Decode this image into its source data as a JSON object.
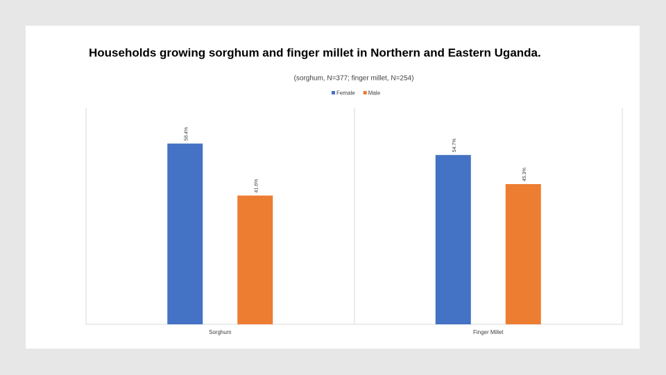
{
  "chart_data": {
    "type": "bar",
    "title": "Households growing sorghum and finger millet in Northern and Eastern Uganda.",
    "subtitle": "(sorghum, N=377; finger millet, N=254)",
    "categories": [
      "Sorghum",
      "Finger Millet"
    ],
    "series": [
      {
        "name": "Female",
        "color": "#4472c4",
        "values": [
          58.4,
          54.7
        ],
        "value_labels": [
          "58.4%",
          "54.7%"
        ]
      },
      {
        "name": "Male",
        "color": "#ed7d31",
        "values": [
          41.6,
          45.3
        ],
        "value_labels": [
          "41.6%",
          "45.3%"
        ]
      }
    ],
    "ylim": [
      0,
      70
    ]
  }
}
